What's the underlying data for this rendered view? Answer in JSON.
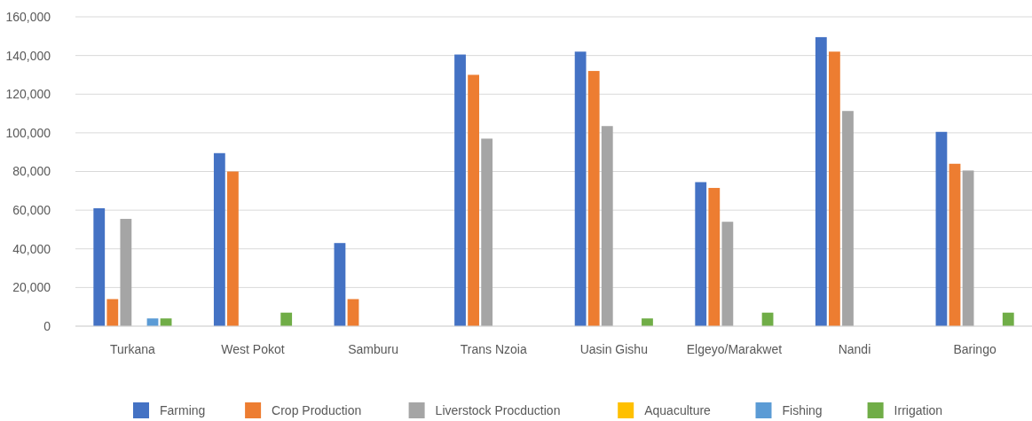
{
  "chart_data": {
    "type": "bar",
    "categories": [
      "Turkana",
      "West Pokot",
      "Samburu",
      "Trans Nzoia",
      "Uasin Gishu",
      "Elgeyo/Marakwet",
      "Nandi",
      "Baringo"
    ],
    "series": [
      {
        "name": "Farming",
        "color": "#4472c4",
        "values": [
          61000,
          89500,
          43000,
          140500,
          142000,
          74500,
          149500,
          100500
        ]
      },
      {
        "name": "Crop Production",
        "color": "#ed7d31",
        "values": [
          14000,
          80000,
          14000,
          130000,
          132000,
          71500,
          142000,
          84000
        ]
      },
      {
        "name": "Liverstock Procduction",
        "color": "#a5a5a5",
        "values": [
          55500,
          null,
          null,
          97000,
          103500,
          54000,
          111300,
          80500
        ]
      },
      {
        "name": "Aquaculture",
        "color": "#ffc000",
        "values": [
          null,
          null,
          null,
          null,
          null,
          null,
          null,
          null
        ]
      },
      {
        "name": "Fishing",
        "color": "#5b9bd5",
        "values": [
          4000,
          null,
          null,
          null,
          null,
          null,
          null,
          null
        ]
      },
      {
        "name": "Irrigation",
        "color": "#70ad47",
        "values": [
          4000,
          7000,
          null,
          null,
          4000,
          7000,
          null,
          7000
        ]
      }
    ],
    "ylim": [
      0,
      160000
    ],
    "yticks": [
      {
        "value": 0,
        "label": "0"
      },
      {
        "value": 20000,
        "label": "20,000"
      },
      {
        "value": 40000,
        "label": "40,000"
      },
      {
        "value": 60000,
        "label": "60,000"
      },
      {
        "value": 80000,
        "label": "80,000"
      },
      {
        "value": 100000,
        "label": "100,000"
      },
      {
        "value": 120000,
        "label": "120,000"
      },
      {
        "value": 140000,
        "label": "140,000"
      },
      {
        "value": 160000,
        "label": "160,000"
      }
    ],
    "grid": "y",
    "legend": "bottom"
  }
}
